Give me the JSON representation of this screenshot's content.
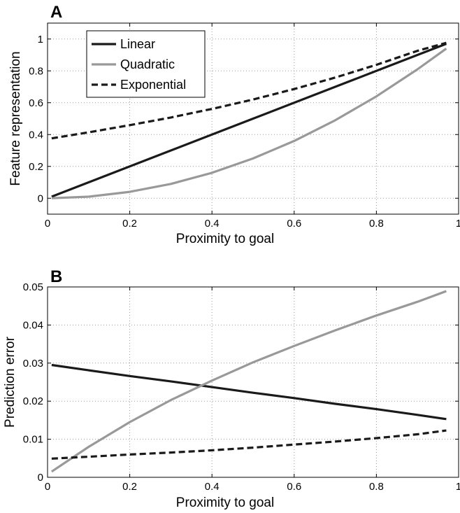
{
  "chart_data": [
    {
      "panel": "A",
      "type": "line",
      "title": "",
      "xlabel": "Proximity to goal",
      "ylabel": "Feature representation",
      "xlim": [
        0,
        1
      ],
      "ylim": [
        -0.1,
        1.1
      ],
      "xticks": [
        0,
        0.2,
        0.4,
        0.6,
        0.8,
        1
      ],
      "xtick_labels": [
        "0",
        "0.2",
        "0.4",
        "0.6",
        "0.8",
        "1"
      ],
      "yticks": [
        0,
        0.2,
        0.4,
        0.6,
        0.8,
        1
      ],
      "ytick_labels": [
        "0",
        "0.2",
        "0.4",
        "0.6",
        "0.8",
        "1"
      ],
      "grid": true,
      "legend_position": "top-left",
      "x": [
        0.01,
        0.1,
        0.2,
        0.3,
        0.4,
        0.5,
        0.6,
        0.7,
        0.8,
        0.9,
        0.97
      ],
      "series": [
        {
          "name": "Linear",
          "color": "#1a1a1a",
          "dash": "solid",
          "values": [
            0.01,
            0.1,
            0.2,
            0.3,
            0.4,
            0.5,
            0.6,
            0.7,
            0.8,
            0.9,
            0.97
          ]
        },
        {
          "name": "Quadratic",
          "color": "#999999",
          "dash": "solid",
          "values": [
            0.0001,
            0.01,
            0.04,
            0.09,
            0.16,
            0.25,
            0.36,
            0.49,
            0.64,
            0.81,
            0.94
          ]
        },
        {
          "name": "Exponential",
          "color": "#1a1a1a",
          "dash": "dashed",
          "values": [
            0.376,
            0.414,
            0.459,
            0.507,
            0.561,
            0.62,
            0.686,
            0.758,
            0.838,
            0.926,
            0.976
          ]
        }
      ]
    },
    {
      "panel": "B",
      "type": "line",
      "title": "",
      "xlabel": "Proximity to goal",
      "ylabel": "Prediction error",
      "xlim": [
        0,
        1
      ],
      "ylim": [
        0,
        0.05
      ],
      "xticks": [
        0,
        0.2,
        0.4,
        0.6,
        0.8,
        1
      ],
      "xtick_labels": [
        "0",
        "0.2",
        "0.4",
        "0.6",
        "0.8",
        "1"
      ],
      "yticks": [
        0,
        0.01,
        0.02,
        0.03,
        0.04,
        0.05
      ],
      "ytick_labels": [
        "0",
        "0.01",
        "0.02",
        "0.03",
        "0.04",
        "0.05"
      ],
      "grid": true,
      "x": [
        0.01,
        0.1,
        0.2,
        0.3,
        0.4,
        0.5,
        0.6,
        0.7,
        0.8,
        0.9,
        0.97
      ],
      "series": [
        {
          "name": "Linear",
          "color": "#1a1a1a",
          "dash": "solid",
          "values": [
            0.0295,
            0.0281,
            0.0266,
            0.0252,
            0.0237,
            0.0222,
            0.0208,
            0.0193,
            0.0179,
            0.0164,
            0.0153
          ]
        },
        {
          "name": "Quadratic",
          "color": "#999999",
          "dash": "solid",
          "values": [
            0.0015,
            0.008,
            0.0145,
            0.0203,
            0.0254,
            0.0302,
            0.0345,
            0.0386,
            0.0425,
            0.0461,
            0.0489
          ]
        },
        {
          "name": "Exponential",
          "color": "#1a1a1a",
          "dash": "dashed",
          "values": [
            0.0049,
            0.0054,
            0.006,
            0.0065,
            0.0071,
            0.0078,
            0.0086,
            0.0094,
            0.0103,
            0.0113,
            0.0123
          ]
        }
      ]
    }
  ]
}
